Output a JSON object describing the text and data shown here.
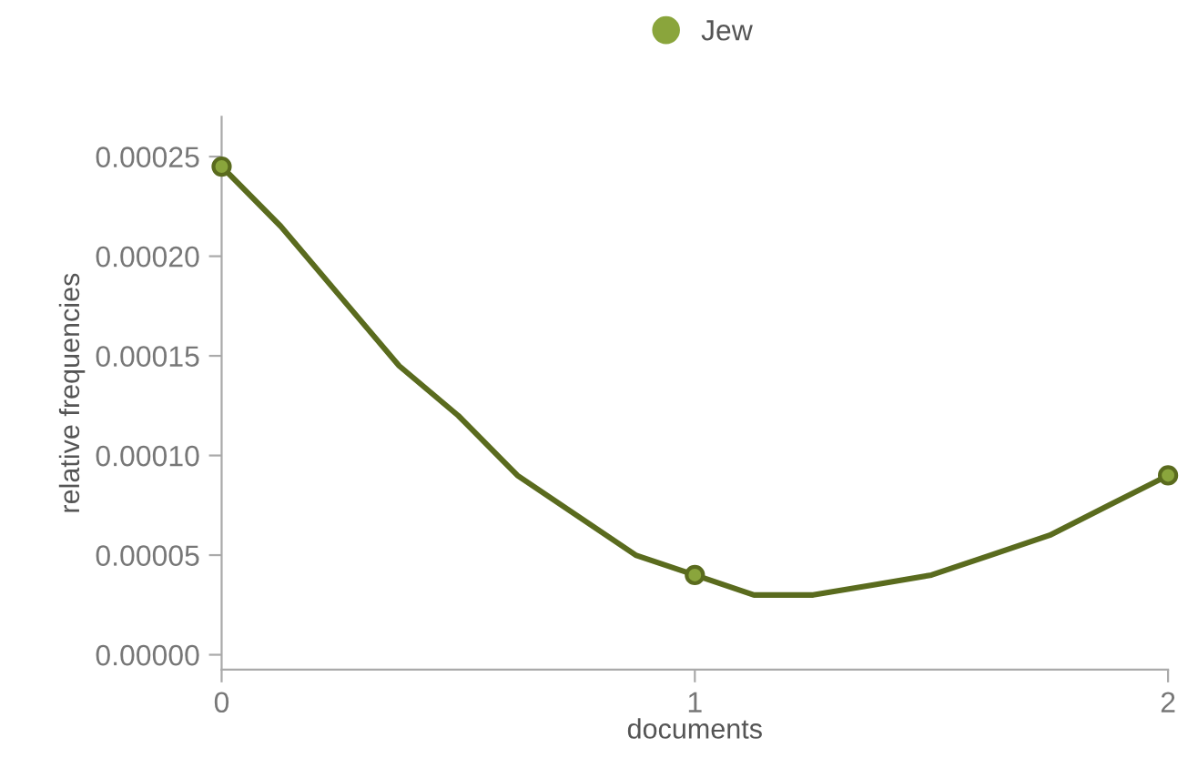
{
  "chart_data": {
    "type": "line",
    "xlabel": "documents",
    "ylabel": "relative frequencies",
    "x": [
      0,
      1,
      2
    ],
    "series": [
      {
        "color": "#5a6b1e",
        "x": [
          0,
          0.125,
          0.25,
          0.375,
          0.5,
          0.625,
          0.75,
          0.875,
          1,
          1.125,
          1.25,
          1.375,
          1.5,
          1.625,
          1.75,
          1.875,
          2
        ],
        "values": [
          0.000245,
          0.000215,
          0.00018,
          0.000145,
          0.00012,
          9e-05,
          7e-05,
          5e-05,
          4e-05,
          3e-05,
          3e-05,
          3.5e-05,
          4e-05,
          5e-05,
          6e-05,
          7.5e-05,
          9e-05
        ]
      },
      {
        "name": "Jew",
        "type": "scatter",
        "color": "#5a6b1e",
        "marker": "circle",
        "values": [
          0.000245,
          4e-05,
          9e-05
        ]
      }
    ],
    "xlim": [
      0,
      2
    ],
    "xticks": [
      0,
      1,
      2
    ],
    "ylim": [
      -7.5e-06,
      0.00027
    ],
    "yticks": [
      {
        "value": 0,
        "label": "0.00000"
      },
      {
        "value": 5e-05,
        "label": "0.00005"
      },
      {
        "value": 0.0001,
        "label": "0.00010"
      },
      {
        "value": 0.00015,
        "label": "0.00015"
      },
      {
        "value": 0.0002,
        "label": "0.00020"
      },
      {
        "value": 0.00025,
        "label": "0.00025"
      }
    ],
    "grid": false,
    "legend": "top",
    "line_style": "solid"
  }
}
